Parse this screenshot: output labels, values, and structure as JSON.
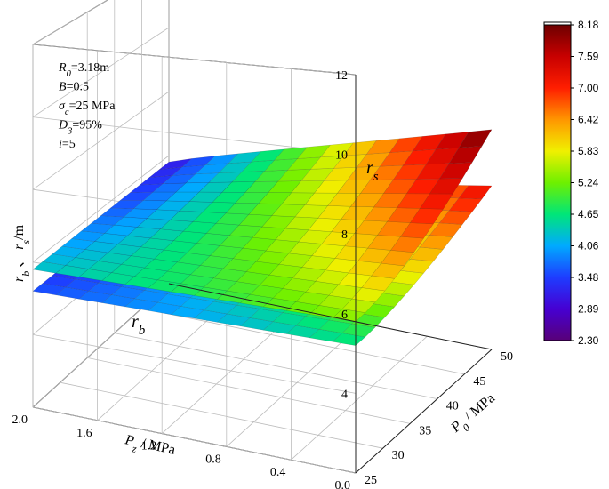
{
  "chart_data": {
    "type": "surface3d",
    "title": "",
    "xlabel": "P₀ / MPa",
    "ylabel": "P₂ / MPa",
    "zlabel": "rᵦ , rₛ /m",
    "xlabel_parts": {
      "main": "P",
      "sub": "0",
      "rest": " / MPa"
    },
    "ylabel_parts": {
      "main": "P",
      "sub": "z",
      "rest": " / MPa"
    },
    "zlabel_parts": {
      "a": "r",
      "a_sub": "b",
      "sep": "、",
      "b": "r",
      "b_sub": "s",
      "rest": "/m"
    },
    "x_ticks": [
      "25",
      "30",
      "35",
      "40",
      "45",
      "50"
    ],
    "y_ticks": [
      "2.0",
      "1.6",
      "1.2",
      "0.8",
      "0.4",
      "0.0"
    ],
    "z_ticks": [
      "4",
      "6",
      "8",
      "10",
      "12"
    ],
    "x_range": [
      25,
      50
    ],
    "y_range": [
      0.0,
      2.0
    ],
    "z_range": [
      2.0,
      12.0
    ],
    "colorbar": {
      "ticks": [
        "8.18",
        "7.59",
        "7.00",
        "6.42",
        "5.83",
        "5.24",
        "4.65",
        "4.06",
        "3.48",
        "2.89",
        "2.30"
      ],
      "range": [
        2.3,
        8.18
      ]
    },
    "annotations": [
      {
        "main": "R",
        "sub": "0",
        "rest": "=3.18m"
      },
      {
        "main": "B",
        "sub": "",
        "rest": "=0.5"
      },
      {
        "main": "σ",
        "sub": "c",
        "rest": "=25 MPa"
      },
      {
        "main": "D",
        "sub": "3",
        "rest": "=95%"
      },
      {
        "main": "i",
        "sub": "",
        "rest": "=5"
      }
    ],
    "series": [
      {
        "name": "r_s",
        "label": {
          "main": "r",
          "sub": "s"
        },
        "peak_value": 8.18,
        "peak_at": {
          "P0": 50,
          "Pz": 0.0
        },
        "corner_value_at_Pz_max": 5.8
      },
      {
        "name": "r_b",
        "label": {
          "main": "r",
          "sub": "b"
        },
        "peak_value": 6.6,
        "peak_at": {
          "P0": 50,
          "Pz": 0.0
        },
        "corner_value_at_Pz_max": 5.2
      }
    ],
    "grid": true,
    "legend": "colorbar-right"
  }
}
